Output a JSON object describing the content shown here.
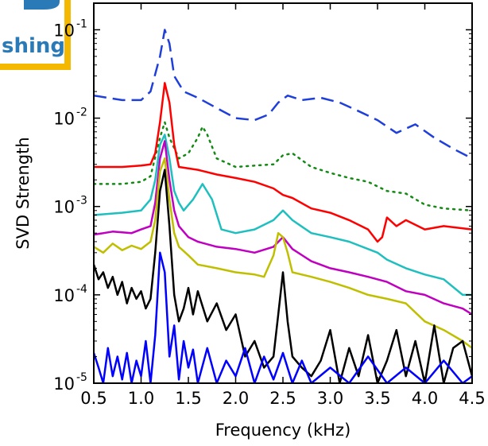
{
  "logo": {
    "text": "shing",
    "color": "#2a7ab8",
    "frame_color": "#f5b800"
  },
  "chart_data": {
    "type": "line",
    "title": "",
    "xlabel": "Frequency (kHz)",
    "ylabel": "SVD Strength",
    "xlim": [
      0.5,
      4.5
    ],
    "ylim": [
      1e-05,
      0.2
    ],
    "yscale": "log",
    "grid": false,
    "x_ticks": [
      "0.5",
      "1.0",
      "1.5",
      "2.0",
      "2.5",
      "3.0",
      "3.5",
      "4.0",
      "4.5"
    ],
    "y_ticks": [
      {
        "base": "10",
        "exp": "-5",
        "value": 1e-05
      },
      {
        "base": "10",
        "exp": "-4",
        "value": 0.0001
      },
      {
        "base": "10",
        "exp": "-3",
        "value": 0.001
      },
      {
        "base": "10",
        "exp": "-2",
        "value": 0.01
      },
      {
        "base": "10",
        "exp": "-1",
        "value": 0.1
      }
    ],
    "series": [
      {
        "color": "#1f3fdb",
        "style": "dashed",
        "x": [
          0.5,
          0.8,
          1.0,
          1.1,
          1.2,
          1.25,
          1.3,
          1.35,
          1.45,
          1.6,
          1.8,
          2.0,
          2.2,
          2.35,
          2.45,
          2.55,
          2.7,
          2.9,
          3.1,
          3.3,
          3.5,
          3.7,
          3.9,
          4.1,
          4.3,
          4.5
        ],
        "y": [
          0.018,
          0.016,
          0.016,
          0.02,
          0.05,
          0.1,
          0.07,
          0.03,
          0.02,
          0.017,
          0.013,
          0.01,
          0.0095,
          0.011,
          0.015,
          0.018,
          0.016,
          0.017,
          0.015,
          0.012,
          0.0095,
          0.0068,
          0.0085,
          0.006,
          0.0045,
          0.0035
        ]
      },
      {
        "color": "#138a13",
        "style": "dotted",
        "x": [
          0.5,
          0.8,
          1.0,
          1.1,
          1.2,
          1.25,
          1.3,
          1.4,
          1.5,
          1.6,
          1.65,
          1.7,
          1.8,
          2.0,
          2.2,
          2.4,
          2.5,
          2.6,
          2.8,
          3.0,
          3.2,
          3.4,
          3.6,
          3.8,
          4.0,
          4.2,
          4.5
        ],
        "y": [
          0.0018,
          0.0018,
          0.0019,
          0.0022,
          0.006,
          0.009,
          0.006,
          0.0035,
          0.004,
          0.006,
          0.008,
          0.0065,
          0.0035,
          0.0028,
          0.0029,
          0.003,
          0.0038,
          0.004,
          0.0028,
          0.0024,
          0.0021,
          0.0019,
          0.0015,
          0.0014,
          0.00105,
          0.00095,
          0.0009
        ]
      },
      {
        "color": "#ff0000",
        "style": "solid",
        "x": [
          0.5,
          0.8,
          1.0,
          1.1,
          1.15,
          1.2,
          1.25,
          1.3,
          1.35,
          1.4,
          1.6,
          1.8,
          2.0,
          2.2,
          2.4,
          2.5,
          2.6,
          2.8,
          3.0,
          3.2,
          3.4,
          3.5,
          3.55,
          3.6,
          3.7,
          3.8,
          4.0,
          4.2,
          4.5
        ],
        "y": [
          0.0028,
          0.0028,
          0.0029,
          0.003,
          0.004,
          0.009,
          0.025,
          0.015,
          0.005,
          0.0028,
          0.0026,
          0.0023,
          0.0021,
          0.0019,
          0.0016,
          0.00135,
          0.00125,
          0.00095,
          0.00085,
          0.0007,
          0.00055,
          0.0004,
          0.00045,
          0.00075,
          0.0006,
          0.0007,
          0.00055,
          0.0006,
          0.00055
        ]
      },
      {
        "color": "#1fbfbf",
        "style": "solid",
        "x": [
          0.5,
          0.8,
          1.0,
          1.1,
          1.15,
          1.2,
          1.25,
          1.3,
          1.35,
          1.4,
          1.45,
          1.55,
          1.65,
          1.75,
          1.85,
          2.0,
          2.2,
          2.4,
          2.5,
          2.6,
          2.8,
          3.0,
          3.2,
          3.5,
          3.6,
          3.8,
          4.0,
          4.2,
          4.4,
          4.5
        ],
        "y": [
          0.0008,
          0.00085,
          0.0009,
          0.0012,
          0.002,
          0.005,
          0.0065,
          0.0035,
          0.0015,
          0.0011,
          0.0009,
          0.0012,
          0.0018,
          0.0012,
          0.00055,
          0.0005,
          0.00055,
          0.0007,
          0.0009,
          0.0007,
          0.0005,
          0.00045,
          0.0004,
          0.0003,
          0.00025,
          0.0002,
          0.00017,
          0.00015,
          0.0001,
          0.0001
        ]
      },
      {
        "color": "#c000c0",
        "style": "solid",
        "x": [
          0.5,
          0.7,
          0.9,
          1.0,
          1.1,
          1.15,
          1.2,
          1.25,
          1.3,
          1.35,
          1.4,
          1.5,
          1.6,
          1.8,
          2.0,
          2.2,
          2.4,
          2.5,
          2.6,
          2.8,
          3.0,
          3.2,
          3.4,
          3.6,
          3.8,
          4.0,
          4.2,
          4.4,
          4.5
        ],
        "y": [
          0.00048,
          0.00052,
          0.0005,
          0.00055,
          0.0006,
          0.0011,
          0.0035,
          0.0055,
          0.002,
          0.0009,
          0.0006,
          0.00045,
          0.0004,
          0.00035,
          0.00033,
          0.0003,
          0.00035,
          0.00045,
          0.00033,
          0.00024,
          0.0002,
          0.00018,
          0.00016,
          0.00014,
          0.00011,
          0.0001,
          8e-05,
          7e-05,
          6e-05
        ]
      },
      {
        "color": "#bfbf00",
        "style": "solid",
        "x": [
          0.5,
          0.6,
          0.7,
          0.8,
          0.9,
          1.0,
          1.1,
          1.15,
          1.2,
          1.25,
          1.3,
          1.35,
          1.4,
          1.5,
          1.6,
          1.8,
          2.0,
          2.2,
          2.3,
          2.4,
          2.45,
          2.5,
          2.55,
          2.6,
          2.8,
          3.0,
          3.2,
          3.4,
          3.6,
          3.8,
          4.0,
          4.2,
          4.4,
          4.5
        ],
        "y": [
          0.00035,
          0.0003,
          0.00038,
          0.00032,
          0.00036,
          0.00033,
          0.0004,
          0.0007,
          0.0025,
          0.0035,
          0.0012,
          0.0005,
          0.00035,
          0.00028,
          0.00022,
          0.0002,
          0.00018,
          0.00017,
          0.00016,
          0.00028,
          0.0005,
          0.00045,
          0.0003,
          0.00018,
          0.00016,
          0.00014,
          0.00012,
          0.0001,
          9e-05,
          8e-05,
          5e-05,
          4e-05,
          3e-05,
          2.5e-05
        ]
      },
      {
        "color": "#000000",
        "style": "solid",
        "x": [
          0.5,
          0.55,
          0.6,
          0.65,
          0.7,
          0.75,
          0.8,
          0.85,
          0.9,
          0.95,
          1.0,
          1.05,
          1.1,
          1.15,
          1.2,
          1.25,
          1.3,
          1.35,
          1.4,
          1.45,
          1.5,
          1.55,
          1.6,
          1.7,
          1.8,
          1.9,
          2.0,
          2.1,
          2.2,
          2.3,
          2.4,
          2.45,
          2.5,
          2.55,
          2.6,
          2.7,
          2.8,
          2.9,
          3.0,
          3.1,
          3.2,
          3.3,
          3.4,
          3.5,
          3.6,
          3.7,
          3.8,
          3.9,
          4.0,
          4.1,
          4.2,
          4.3,
          4.4,
          4.5
        ],
        "y": [
          0.00022,
          0.00015,
          0.00018,
          0.00012,
          0.00016,
          0.0001,
          0.00014,
          8e-05,
          0.00012,
          9e-05,
          0.00011,
          7e-05,
          9e-05,
          0.0003,
          0.0015,
          0.0026,
          0.0006,
          0.0001,
          5e-05,
          7e-05,
          0.00012,
          6e-05,
          0.00011,
          5e-05,
          8e-05,
          4e-05,
          6e-05,
          2e-05,
          3e-05,
          1.5e-05,
          2e-05,
          6e-05,
          0.00018,
          5e-05,
          2e-05,
          1.5e-05,
          1.2e-05,
          1.8e-05,
          4e-05,
          1e-05,
          2.5e-05,
          1.2e-05,
          3.5e-05,
          1e-05,
          1.8e-05,
          4e-05,
          1.2e-05,
          3e-05,
          1e-05,
          4.5e-05,
          1e-05,
          2.5e-05,
          3e-05,
          1.2e-05
        ]
      },
      {
        "color": "#0000ff",
        "style": "solid",
        "x": [
          0.5,
          0.55,
          0.6,
          0.65,
          0.7,
          0.75,
          0.8,
          0.85,
          0.9,
          0.95,
          1.0,
          1.05,
          1.1,
          1.15,
          1.2,
          1.25,
          1.3,
          1.35,
          1.4,
          1.45,
          1.5,
          1.55,
          1.6,
          1.7,
          1.8,
          1.9,
          2.0,
          2.1,
          2.2,
          2.3,
          2.4,
          2.5,
          2.6,
          2.7,
          2.8,
          3.0,
          3.2,
          3.4,
          3.6,
          3.8,
          4.0,
          4.2,
          4.4,
          4.5
        ],
        "y": [
          2.2e-05,
          1.5e-05,
          1e-05,
          2.5e-05,
          1.2e-05,
          2e-05,
          1.1e-05,
          2.2e-05,
          1e-05,
          1.8e-05,
          1.2e-05,
          3e-05,
          1e-05,
          3.5e-05,
          0.0003,
          0.00018,
          2e-05,
          4.5e-05,
          1.1e-05,
          3e-05,
          1.5e-05,
          2.4e-05,
          1e-05,
          2.5e-05,
          1e-05,
          1.8e-05,
          1.2e-05,
          2.5e-05,
          1e-05,
          2e-05,
          1.1e-05,
          2.2e-05,
          1e-05,
          1.8e-05,
          1e-05,
          1.5e-05,
          1e-05,
          2e-05,
          1e-05,
          1.5e-05,
          1e-05,
          1.8e-05,
          1e-05,
          1.2e-05
        ]
      }
    ]
  }
}
